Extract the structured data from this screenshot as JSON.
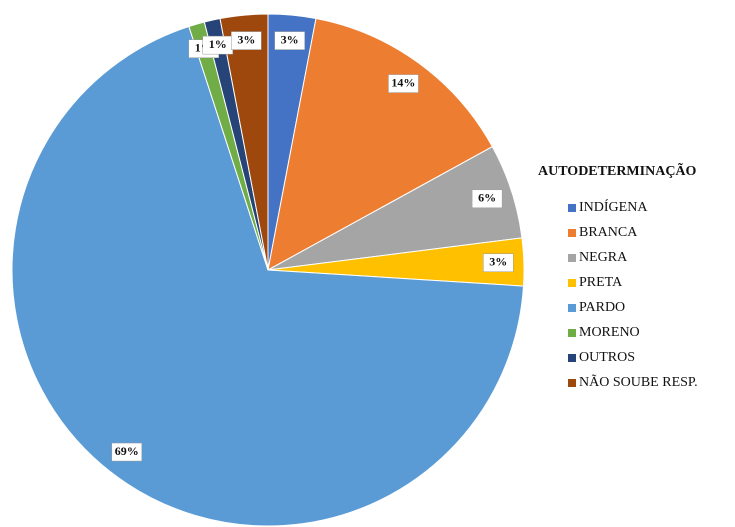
{
  "chart_data": {
    "type": "pie",
    "legend_title": "AUTODETERMINAÇÃO",
    "categories": [
      "INDÍGENA",
      "BRANCA",
      "NEGRA",
      "PRETA",
      "PARDO",
      "MORENO",
      "OUTROS",
      "NÃO SOUBE RESP."
    ],
    "values": [
      3,
      14,
      6,
      3,
      69,
      1,
      1,
      3
    ],
    "value_labels": [
      "3%",
      "14%",
      "6%",
      "3%",
      "69%",
      "1%",
      "1%",
      "3%"
    ],
    "colors": [
      "#4472c4",
      "#ed7d31",
      "#a5a5a5",
      "#ffc000",
      "#5b9bd5",
      "#70ad47",
      "#264478",
      "#9e480e"
    ],
    "legend": "right"
  }
}
